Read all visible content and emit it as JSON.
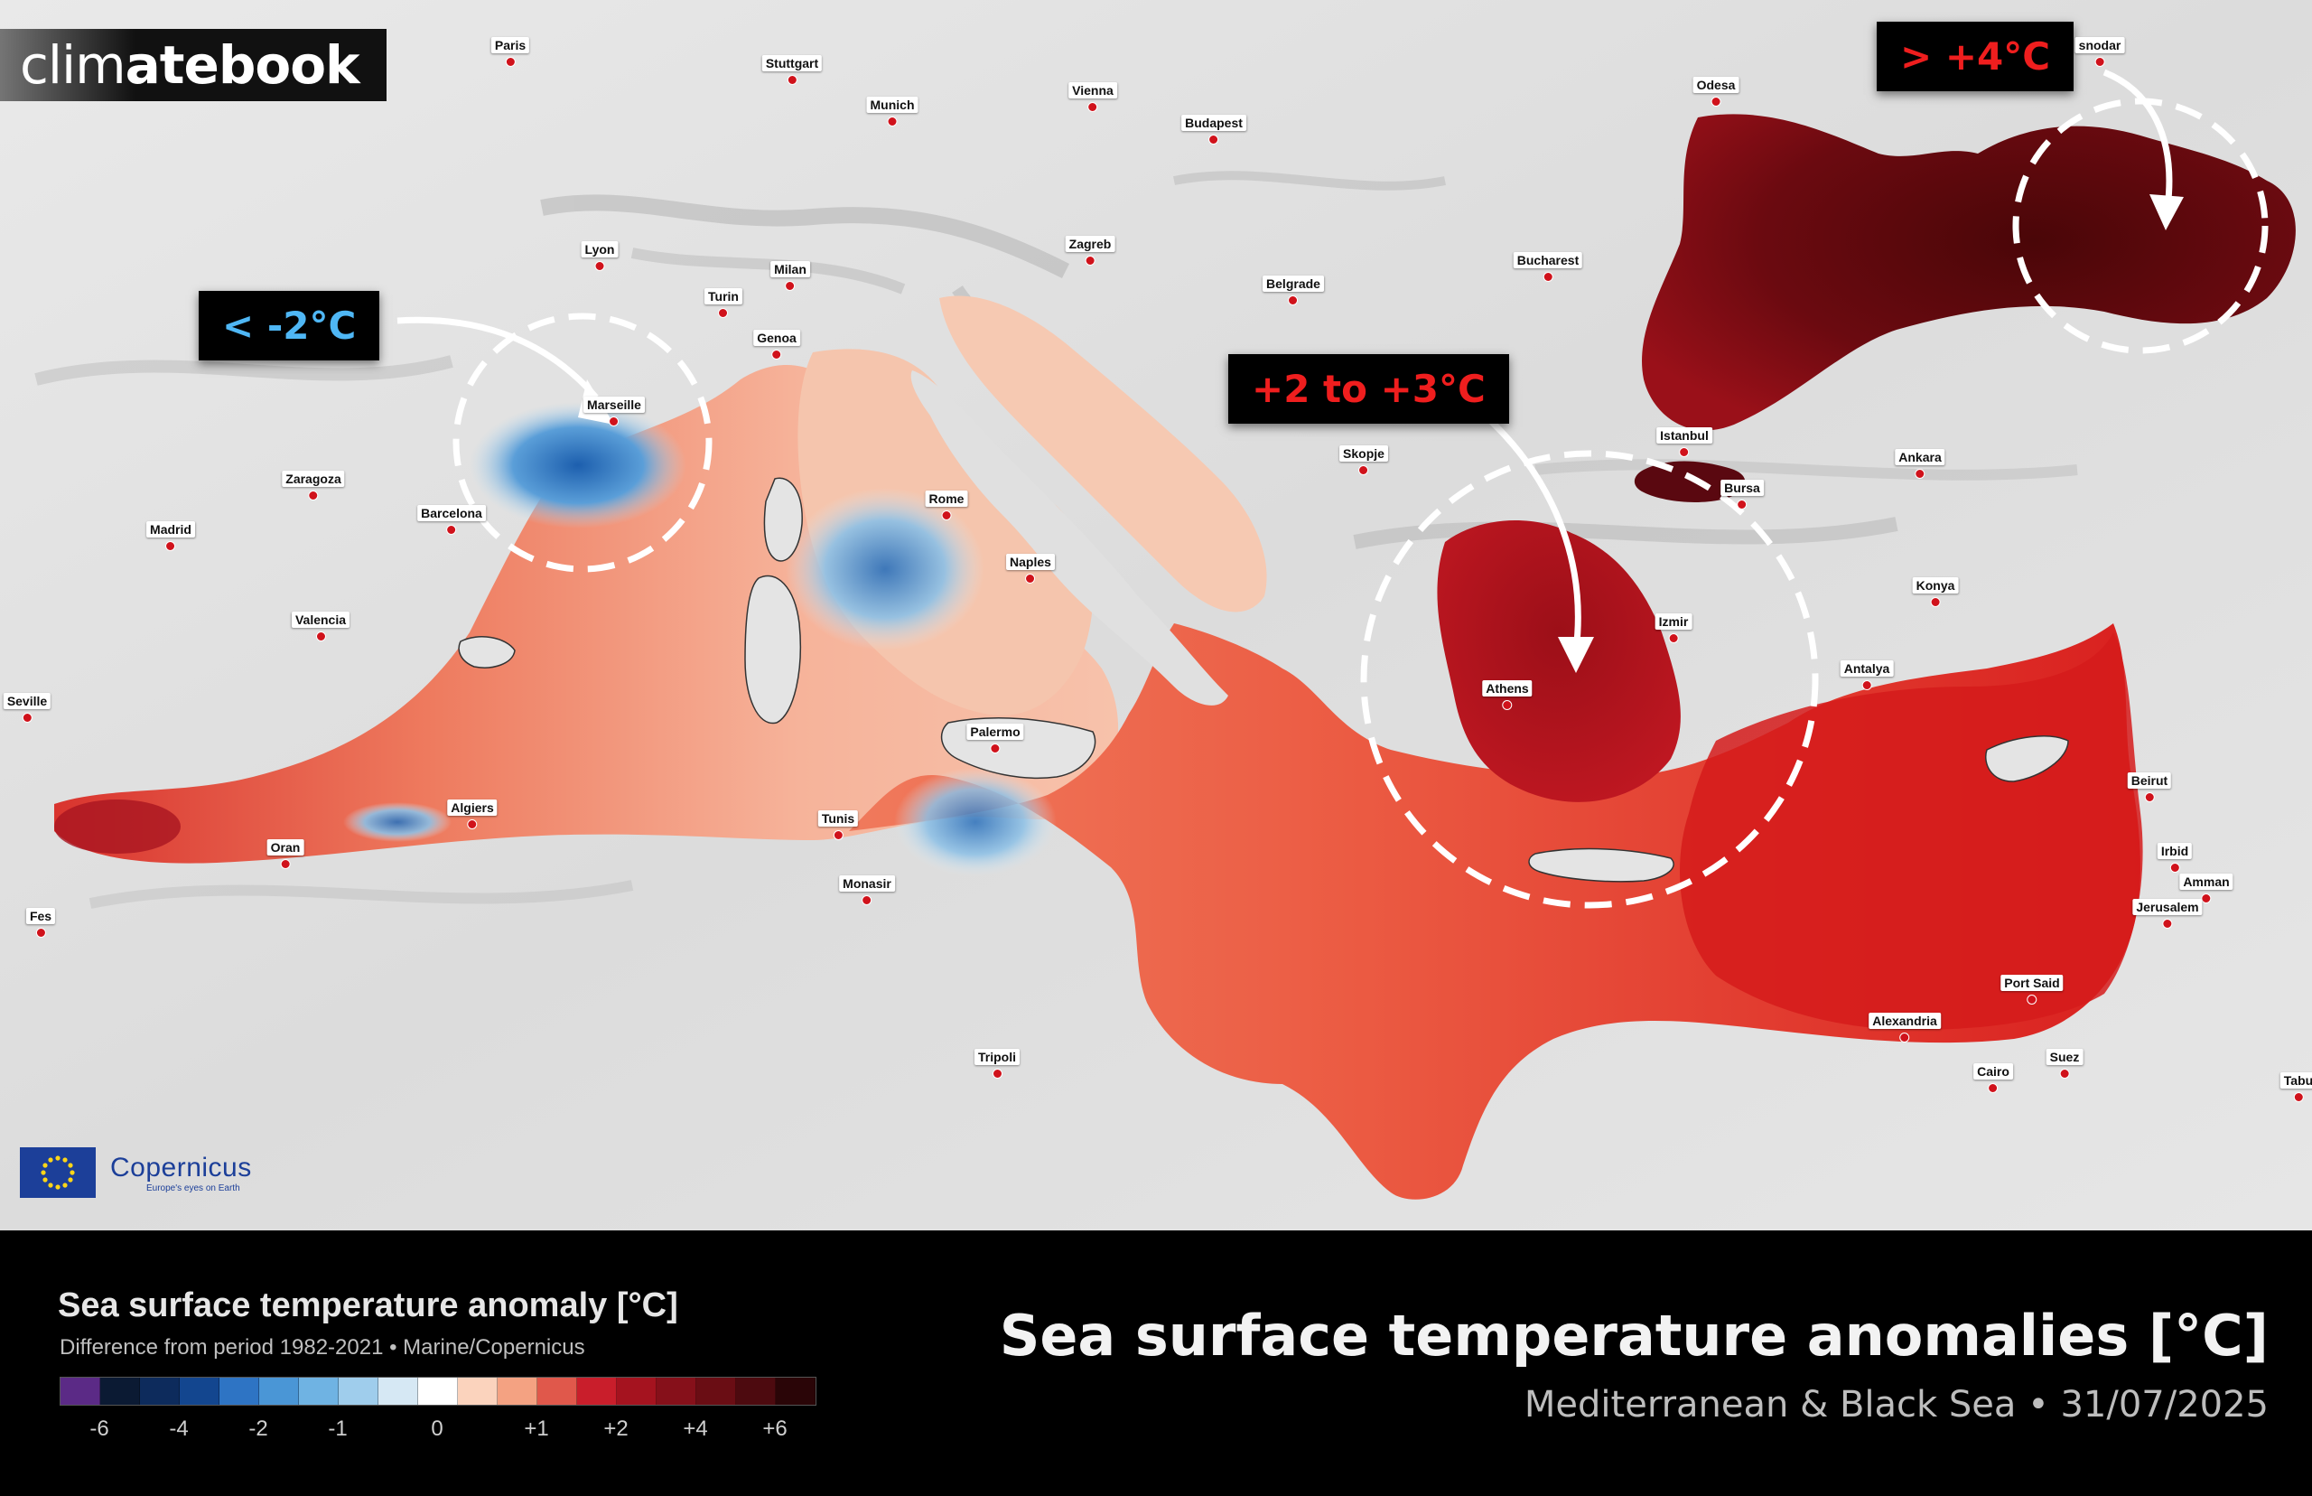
{
  "brand": {
    "part1": "clim",
    "part2": "atebook"
  },
  "logos": {
    "copernicus_name": "Copernicus",
    "copernicus_tagline": "Europe's eyes on Earth"
  },
  "callouts": [
    {
      "text": "< -2°C",
      "color": "#4fb7f5"
    },
    {
      "text": "+2 to +3°C",
      "color": "#ef1e1e"
    },
    {
      "text": "> +4°C",
      "color": "#ef1e1e"
    }
  ],
  "cities": [
    "Paris",
    "Stuttgart",
    "Munich",
    "Vienna",
    "Budapest",
    "Odesa",
    "snodar",
    "Lyon",
    "Zagreb",
    "Milan",
    "Turin",
    "Belgrade",
    "Bucharest",
    "Genoa",
    "Marseille",
    "Zaragoza",
    "Barcelona",
    "Madrid",
    "Skopje",
    "Istanbul",
    "Ankara",
    "Bursa",
    "Rome",
    "Naples",
    "Valencia",
    "Izmir",
    "Konya",
    "Athens",
    "Antalya",
    "Seville",
    "Palermo",
    "Algiers",
    "Tunis",
    "Oran",
    "Monasir",
    "Beirut",
    "Irbid",
    "Amman",
    "Jerusalem",
    "Fes",
    "Port Said",
    "Alexandria",
    "Tripoli",
    "Suez",
    "Cairo",
    "Tabu"
  ],
  "legend": {
    "title": "Sea surface temperature anomaly [°C]",
    "subtitle": "Difference from period 1982-2021 • Marine/Copernicus",
    "colors": [
      "#5b2a86",
      "#0b1a33",
      "#0d2b5c",
      "#13468f",
      "#2e74c4",
      "#4a96d6",
      "#6fb3e3",
      "#9fcdec",
      "#d6e8f4",
      "#ffffff",
      "#fbd3bd",
      "#f4a282",
      "#e0584b",
      "#c91e2b",
      "#a5131f",
      "#86101a",
      "#6a0d14",
      "#4d0a0f",
      "#2a0507"
    ],
    "ticks": [
      "-6",
      "-4",
      "-2",
      "-1",
      "0",
      "+1",
      "+2",
      "+4",
      "+6"
    ]
  },
  "header": {
    "title": "Sea surface temperature anomalies [°C]",
    "subtitle": "Mediterranean & Black Sea • 31/07/2025"
  }
}
